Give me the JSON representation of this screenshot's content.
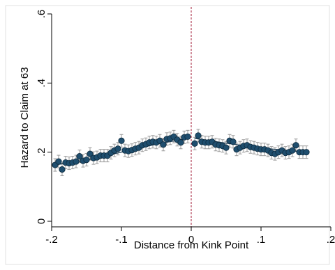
{
  "chart_data": {
    "type": "scatter",
    "xlabel": "Distance from Kink Point",
    "ylabel": "Hazard to Claim at 63",
    "xlim": [
      -0.2,
      0.2
    ],
    "ylim": [
      0,
      0.6
    ],
    "x_ticks": [
      -0.2,
      -0.1,
      0,
      0.1,
      0.2
    ],
    "x_tick_labels": [
      "-.2",
      "-.1",
      "0",
      ".1",
      ".2"
    ],
    "y_ticks": [
      0,
      0.2,
      0.4,
      0.6
    ],
    "y_tick_labels": [
      "0",
      ".2",
      ".4",
      ".6"
    ],
    "grid": false,
    "kink_line_x": 0,
    "colors": {
      "marker": "#1f4e6e",
      "marker_edge": "#0e2a3d",
      "fit_line": "#1f3f57",
      "ci": "#9a9a9a",
      "kink_line": "#a01a35"
    },
    "points": [
      {
        "x": -0.195,
        "y": 0.163
      },
      {
        "x": -0.19,
        "y": 0.173
      },
      {
        "x": -0.185,
        "y": 0.15
      },
      {
        "x": -0.18,
        "y": 0.17
      },
      {
        "x": -0.175,
        "y": 0.168
      },
      {
        "x": -0.17,
        "y": 0.17
      },
      {
        "x": -0.165,
        "y": 0.173
      },
      {
        "x": -0.16,
        "y": 0.188
      },
      {
        "x": -0.155,
        "y": 0.175
      },
      {
        "x": -0.15,
        "y": 0.178
      },
      {
        "x": -0.145,
        "y": 0.195
      },
      {
        "x": -0.14,
        "y": 0.183
      },
      {
        "x": -0.135,
        "y": 0.185
      },
      {
        "x": -0.13,
        "y": 0.19
      },
      {
        "x": -0.125,
        "y": 0.19
      },
      {
        "x": -0.12,
        "y": 0.19
      },
      {
        "x": -0.115,
        "y": 0.198
      },
      {
        "x": -0.11,
        "y": 0.205
      },
      {
        "x": -0.105,
        "y": 0.21
      },
      {
        "x": -0.1,
        "y": 0.233
      },
      {
        "x": -0.095,
        "y": 0.205
      },
      {
        "x": -0.09,
        "y": 0.203
      },
      {
        "x": -0.085,
        "y": 0.206
      },
      {
        "x": -0.08,
        "y": 0.21
      },
      {
        "x": -0.075,
        "y": 0.213
      },
      {
        "x": -0.07,
        "y": 0.22
      },
      {
        "x": -0.065,
        "y": 0.223
      },
      {
        "x": -0.06,
        "y": 0.228
      },
      {
        "x": -0.055,
        "y": 0.23
      },
      {
        "x": -0.05,
        "y": 0.228
      },
      {
        "x": -0.045,
        "y": 0.233
      },
      {
        "x": -0.04,
        "y": 0.222
      },
      {
        "x": -0.035,
        "y": 0.238
      },
      {
        "x": -0.03,
        "y": 0.24
      },
      {
        "x": -0.025,
        "y": 0.245
      },
      {
        "x": -0.02,
        "y": 0.236
      },
      {
        "x": -0.015,
        "y": 0.228
      },
      {
        "x": -0.01,
        "y": 0.243
      },
      {
        "x": -0.005,
        "y": 0.245
      },
      {
        "x": 0.005,
        "y": 0.225
      },
      {
        "x": 0.01,
        "y": 0.248
      },
      {
        "x": 0.015,
        "y": 0.23
      },
      {
        "x": 0.02,
        "y": 0.228
      },
      {
        "x": 0.025,
        "y": 0.228
      },
      {
        "x": 0.03,
        "y": 0.23
      },
      {
        "x": 0.035,
        "y": 0.222
      },
      {
        "x": 0.04,
        "y": 0.22
      },
      {
        "x": 0.045,
        "y": 0.218
      },
      {
        "x": 0.05,
        "y": 0.213
      },
      {
        "x": 0.055,
        "y": 0.233
      },
      {
        "x": 0.06,
        "y": 0.23
      },
      {
        "x": 0.065,
        "y": 0.208
      },
      {
        "x": 0.07,
        "y": 0.213
      },
      {
        "x": 0.075,
        "y": 0.218
      },
      {
        "x": 0.08,
        "y": 0.22
      },
      {
        "x": 0.085,
        "y": 0.215
      },
      {
        "x": 0.09,
        "y": 0.213
      },
      {
        "x": 0.095,
        "y": 0.21
      },
      {
        "x": 0.1,
        "y": 0.208
      },
      {
        "x": 0.105,
        "y": 0.208
      },
      {
        "x": 0.11,
        "y": 0.205
      },
      {
        "x": 0.115,
        "y": 0.198
      },
      {
        "x": 0.12,
        "y": 0.195
      },
      {
        "x": 0.125,
        "y": 0.2
      },
      {
        "x": 0.13,
        "y": 0.205
      },
      {
        "x": 0.135,
        "y": 0.198
      },
      {
        "x": 0.14,
        "y": 0.2
      },
      {
        "x": 0.145,
        "y": 0.205
      },
      {
        "x": 0.15,
        "y": 0.22
      },
      {
        "x": 0.155,
        "y": 0.2
      },
      {
        "x": 0.16,
        "y": 0.2
      },
      {
        "x": 0.165,
        "y": 0.2
      }
    ],
    "fit_left": [
      {
        "x": -0.195,
        "y": 0.163
      },
      {
        "x": -0.15,
        "y": 0.177
      },
      {
        "x": -0.1,
        "y": 0.2
      },
      {
        "x": -0.05,
        "y": 0.223
      },
      {
        "x": -0.005,
        "y": 0.24
      }
    ],
    "fit_right": [
      {
        "x": 0.005,
        "y": 0.24
      },
      {
        "x": 0.05,
        "y": 0.226
      },
      {
        "x": 0.1,
        "y": 0.212
      },
      {
        "x": 0.165,
        "y": 0.2
      }
    ]
  }
}
